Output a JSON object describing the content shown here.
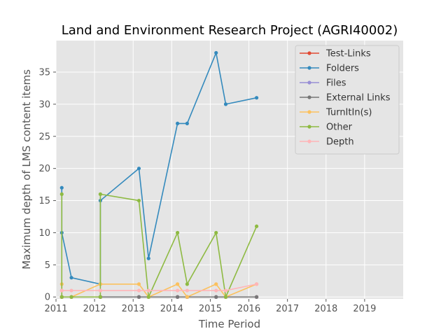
{
  "chart_data": {
    "type": "line",
    "title": "Land and Environment Research Project (AGRI40002)",
    "xlabel": "Time Period",
    "ylabel": "Maximum depth of LMS content items",
    "xlim": [
      2011.0,
      2020.0
    ],
    "ylim": [
      -0.3,
      39.9
    ],
    "xticks": [
      2011,
      2012,
      2013,
      2014,
      2015,
      2016,
      2017,
      2018,
      2019
    ],
    "xtick_labels": [
      "2011",
      "2012",
      "2013",
      "2014",
      "2015",
      "2016",
      "2017",
      "2018",
      "2019"
    ],
    "yticks": [
      0,
      5,
      10,
      15,
      20,
      25,
      30,
      35
    ],
    "ytick_labels": [
      "0",
      "5",
      "10",
      "15",
      "20",
      "25",
      "30",
      "35"
    ],
    "grid": true,
    "legend_position": "top-right",
    "x": [
      2011.15,
      2011.15,
      2011.4,
      2012.15,
      2012.15,
      2013.15,
      2013.4,
      2014.15,
      2014.4,
      2015.15,
      2015.4,
      2016.2
    ],
    "series": [
      {
        "name": "Test-Links",
        "color": "#E24A33",
        "values": [
          0,
          0,
          0,
          0,
          0,
          0,
          0,
          0,
          0,
          0,
          0,
          0
        ]
      },
      {
        "name": "Folders",
        "color": "#348ABD",
        "values": [
          17,
          10,
          3,
          2,
          15,
          20,
          6,
          27,
          27,
          38,
          30,
          31
        ]
      },
      {
        "name": "Files",
        "color": "#988ED5",
        "values": [
          0,
          0,
          0,
          0,
          0,
          0,
          0,
          0,
          0,
          0,
          0,
          0
        ]
      },
      {
        "name": "External Links",
        "color": "#777777",
        "values": [
          0,
          0,
          0,
          0,
          0,
          0,
          0,
          0,
          0,
          0,
          0,
          0
        ]
      },
      {
        "name": "TurnItIn(s)",
        "color": "#FBC15E",
        "values": [
          2,
          0,
          0,
          2,
          2,
          2,
          0,
          2,
          0,
          2,
          0,
          2
        ]
      },
      {
        "name": "Other",
        "color": "#8EBA42",
        "values": [
          16,
          0,
          0,
          0,
          16,
          15,
          0,
          10,
          2,
          10,
          0,
          11
        ]
      },
      {
        "name": "Depth",
        "color": "#FFB5B8",
        "values": [
          1,
          1,
          1,
          1,
          1,
          1,
          1,
          1,
          1,
          1,
          1,
          2
        ]
      }
    ]
  }
}
